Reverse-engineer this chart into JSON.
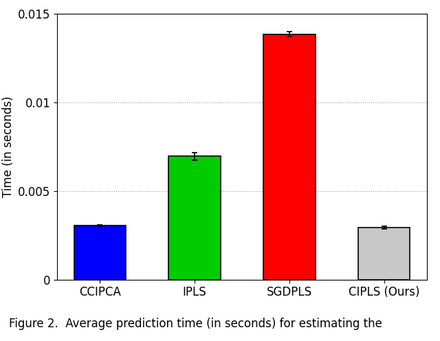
{
  "categories": [
    "CCIPCA",
    "IPLS",
    "SGDPLS",
    "CIPLS (Ours)"
  ],
  "values": [
    0.00305,
    0.00695,
    0.01385,
    0.00295
  ],
  "errors": [
    5e-05,
    0.0002,
    0.00015,
    8e-05
  ],
  "colors": [
    "#0000ff",
    "#00cc00",
    "#ff0000",
    "#c8c8c8"
  ],
  "ylabel": "Time (in seconds)",
  "caption": "Figure 2.  Average prediction time (in seconds) for estimating the",
  "ylim": [
    0,
    0.015
  ],
  "yticks": [
    0,
    0.005,
    0.01,
    0.015
  ],
  "figsize": [
    6.4,
    4.96
  ],
  "dpi": 100,
  "background_color": "#ffffff",
  "grid_color": "#999999",
  "bar_width": 0.55,
  "edge_color": "#000000",
  "error_capsize": 3,
  "error_linewidth": 1.2,
  "error_color": "#000000",
  "tick_fontsize": 12,
  "label_fontsize": 12,
  "caption_fontsize": 12
}
